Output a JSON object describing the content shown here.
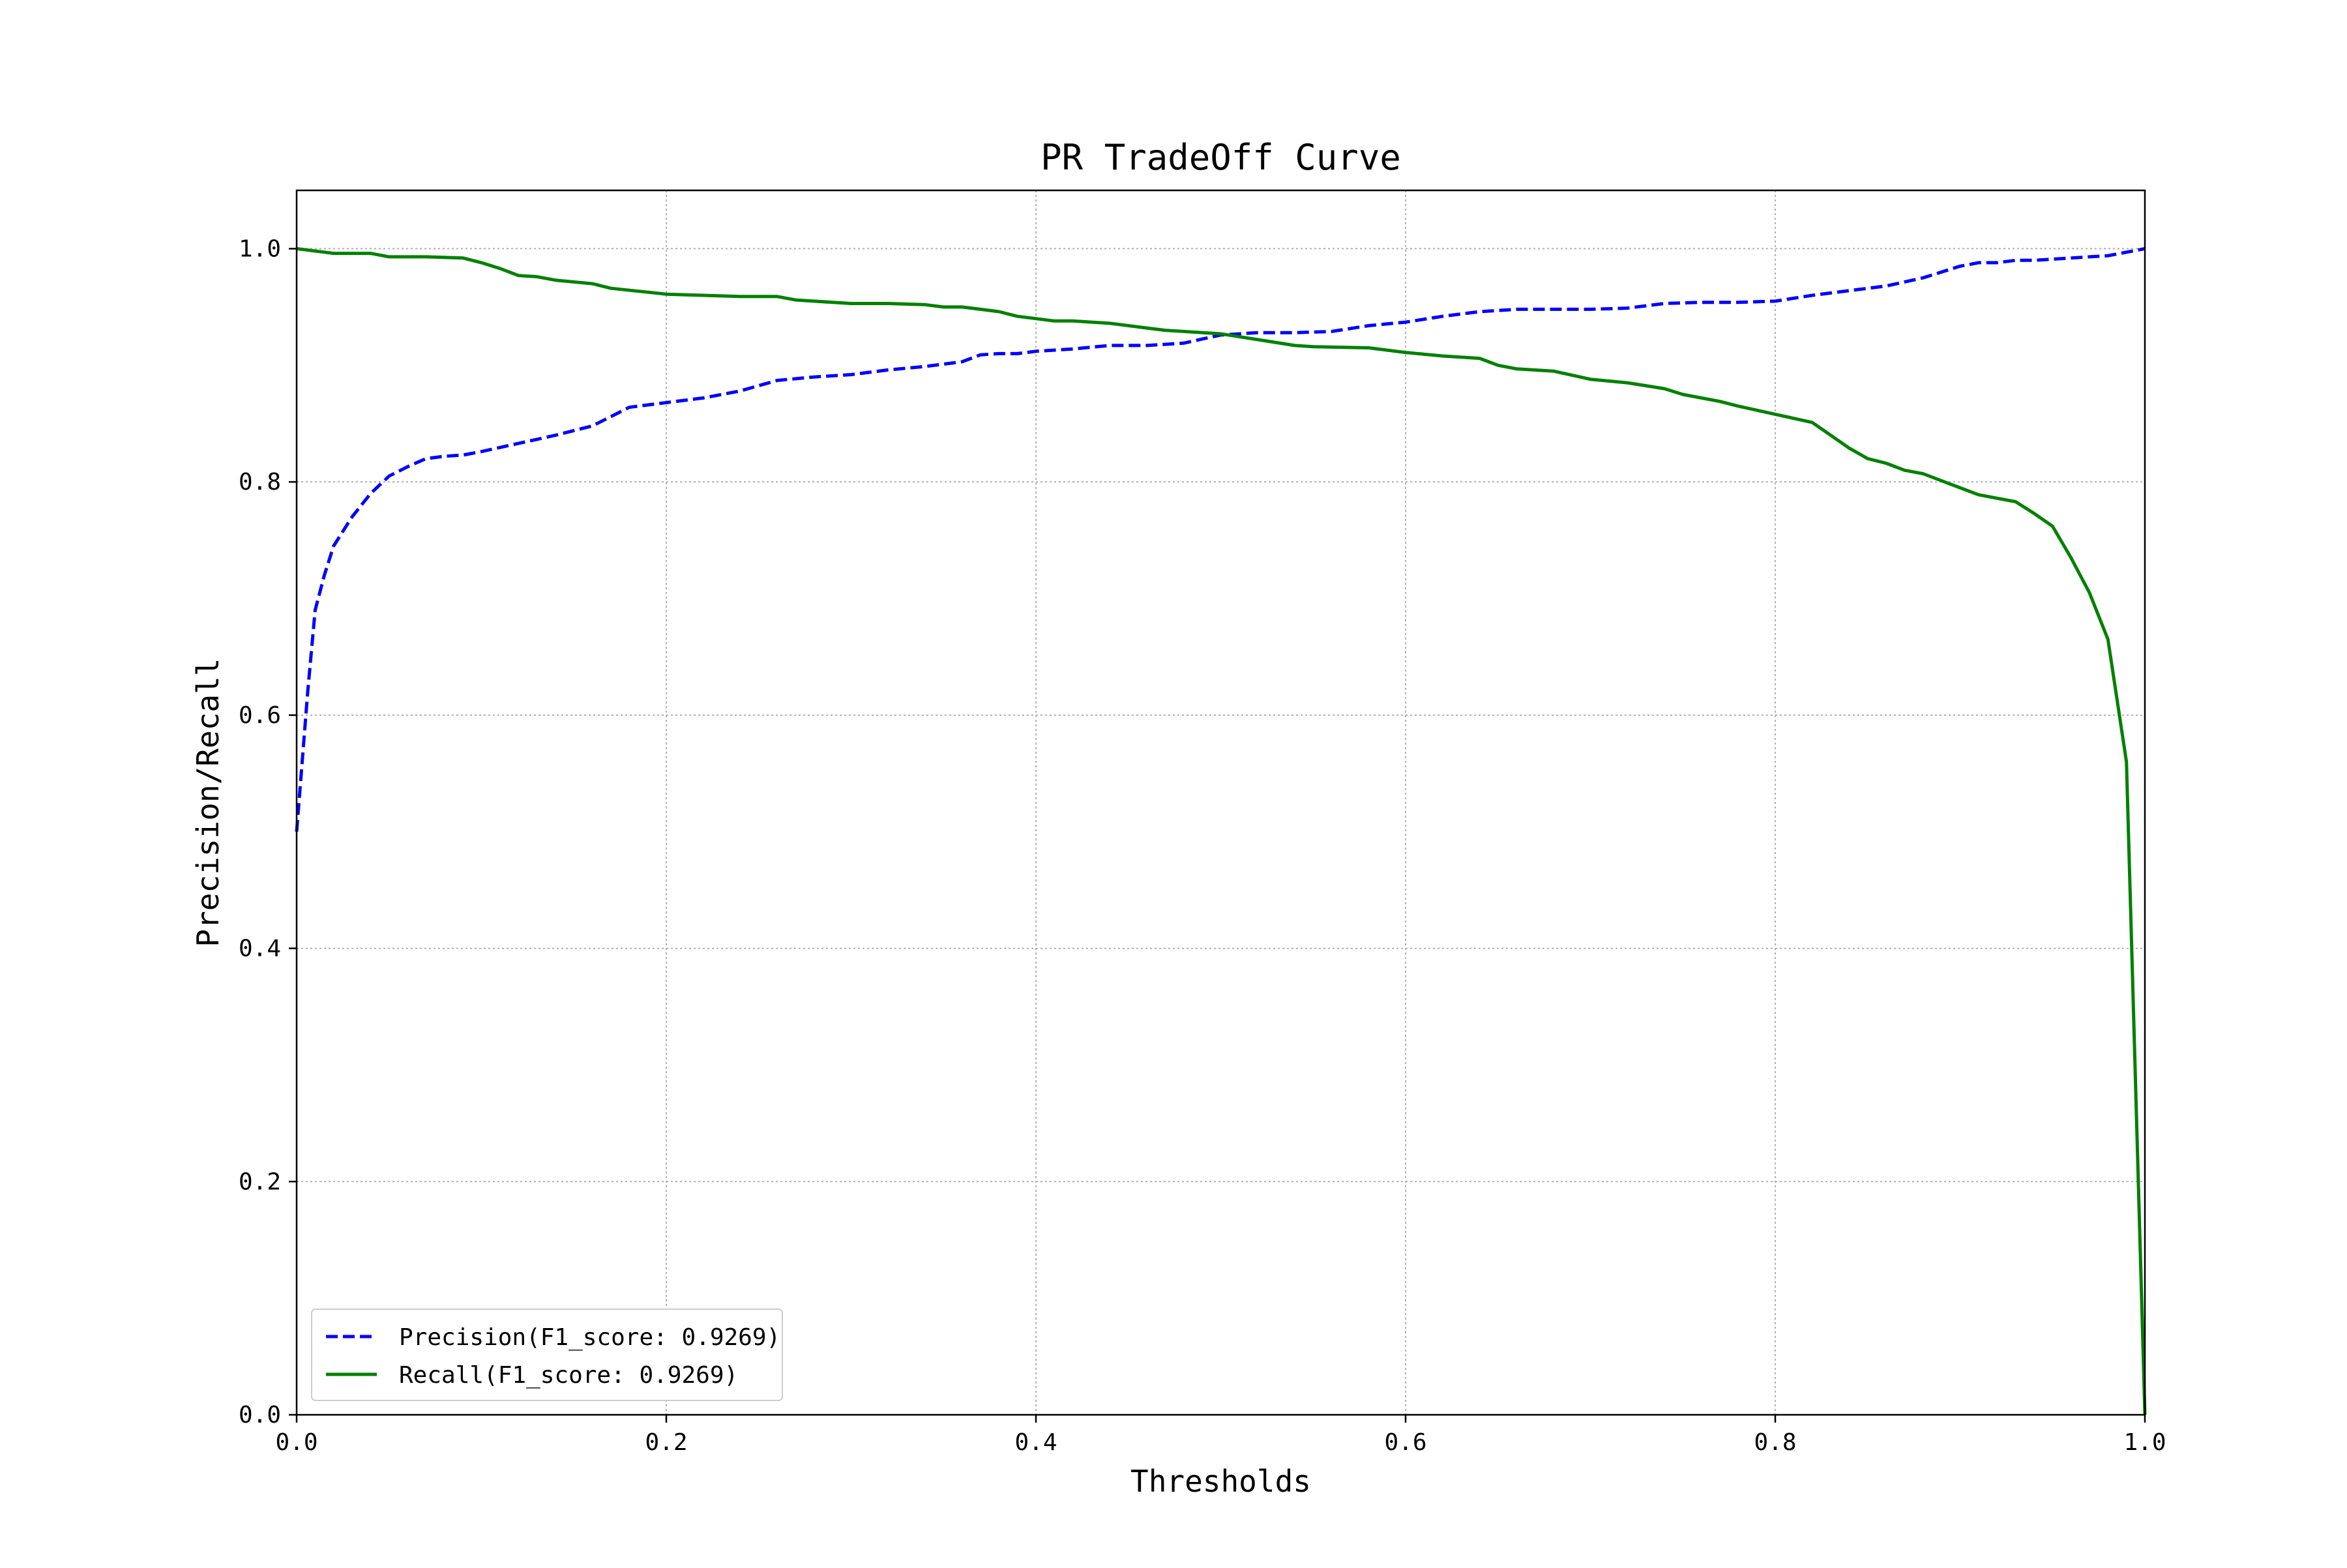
{
  "chart_data": {
    "type": "line",
    "title": "PR TradeOff Curve",
    "xlabel": "Thresholds",
    "ylabel": "Precision/Recall",
    "xlim": [
      0.0,
      1.0
    ],
    "ylim": [
      0.0,
      1.05
    ],
    "xticks": [
      "0.0",
      "0.2",
      "0.4",
      "0.6",
      "0.8",
      "1.0"
    ],
    "yticks": [
      "0.0",
      "0.2",
      "0.4",
      "0.6",
      "0.8",
      "1.0"
    ],
    "grid": true,
    "legend_position": "lower-left",
    "series": [
      {
        "name": "Precision(F1_score: 0.9269)",
        "color": "#0000ff",
        "linestyle": "dashed",
        "x": [
          0.0,
          0.003,
          0.006,
          0.01,
          0.015,
          0.02,
          0.03,
          0.04,
          0.05,
          0.06,
          0.07,
          0.08,
          0.09,
          0.1,
          0.12,
          0.14,
          0.16,
          0.18,
          0.2,
          0.22,
          0.24,
          0.26,
          0.28,
          0.3,
          0.32,
          0.34,
          0.36,
          0.37,
          0.38,
          0.39,
          0.4,
          0.42,
          0.44,
          0.46,
          0.48,
          0.5,
          0.52,
          0.54,
          0.56,
          0.58,
          0.6,
          0.62,
          0.64,
          0.66,
          0.68,
          0.7,
          0.72,
          0.74,
          0.76,
          0.78,
          0.8,
          0.82,
          0.84,
          0.86,
          0.88,
          0.9,
          0.91,
          0.92,
          0.93,
          0.94,
          0.95,
          0.96,
          0.97,
          0.98,
          0.99,
          1.0
        ],
        "values": [
          0.5,
          0.56,
          0.62,
          0.69,
          0.72,
          0.745,
          0.77,
          0.79,
          0.805,
          0.813,
          0.82,
          0.822,
          0.823,
          0.826,
          0.833,
          0.84,
          0.848,
          0.864,
          0.868,
          0.872,
          0.878,
          0.887,
          0.89,
          0.892,
          0.896,
          0.899,
          0.903,
          0.909,
          0.91,
          0.91,
          0.912,
          0.914,
          0.917,
          0.917,
          0.919,
          0.926,
          0.928,
          0.928,
          0.929,
          0.934,
          0.937,
          0.942,
          0.946,
          0.948,
          0.948,
          0.948,
          0.949,
          0.953,
          0.954,
          0.954,
          0.955,
          0.96,
          0.964,
          0.968,
          0.975,
          0.985,
          0.988,
          0.988,
          0.99,
          0.99,
          0.991,
          0.992,
          0.993,
          0.994,
          0.997,
          1.0
        ]
      },
      {
        "name": "Recall(F1_score: 0.9269)",
        "color": "#008000",
        "linestyle": "solid",
        "x": [
          0.0,
          0.02,
          0.04,
          0.05,
          0.07,
          0.09,
          0.1,
          0.11,
          0.12,
          0.13,
          0.14,
          0.16,
          0.17,
          0.2,
          0.22,
          0.24,
          0.26,
          0.27,
          0.3,
          0.32,
          0.34,
          0.35,
          0.36,
          0.37,
          0.38,
          0.39,
          0.4,
          0.41,
          0.42,
          0.44,
          0.46,
          0.47,
          0.48,
          0.5,
          0.52,
          0.54,
          0.55,
          0.58,
          0.6,
          0.62,
          0.64,
          0.65,
          0.66,
          0.68,
          0.7,
          0.72,
          0.74,
          0.75,
          0.77,
          0.78,
          0.8,
          0.82,
          0.83,
          0.84,
          0.85,
          0.86,
          0.87,
          0.88,
          0.89,
          0.9,
          0.91,
          0.92,
          0.93,
          0.94,
          0.95,
          0.96,
          0.97,
          0.98,
          0.99,
          1.0
        ],
        "values": [
          1.0,
          0.996,
          0.996,
          0.993,
          0.993,
          0.992,
          0.988,
          0.983,
          0.977,
          0.976,
          0.973,
          0.97,
          0.966,
          0.961,
          0.96,
          0.959,
          0.959,
          0.956,
          0.953,
          0.953,
          0.952,
          0.95,
          0.95,
          0.948,
          0.946,
          0.942,
          0.94,
          0.938,
          0.938,
          0.936,
          0.932,
          0.93,
          0.929,
          0.927,
          0.922,
          0.917,
          0.916,
          0.915,
          0.911,
          0.908,
          0.906,
          0.9,
          0.897,
          0.895,
          0.888,
          0.885,
          0.88,
          0.875,
          0.869,
          0.865,
          0.858,
          0.851,
          0.84,
          0.829,
          0.82,
          0.816,
          0.81,
          0.807,
          0.801,
          0.795,
          0.789,
          0.786,
          0.783,
          0.773,
          0.762,
          0.735,
          0.705,
          0.665,
          0.56,
          0.0
        ]
      }
    ]
  }
}
